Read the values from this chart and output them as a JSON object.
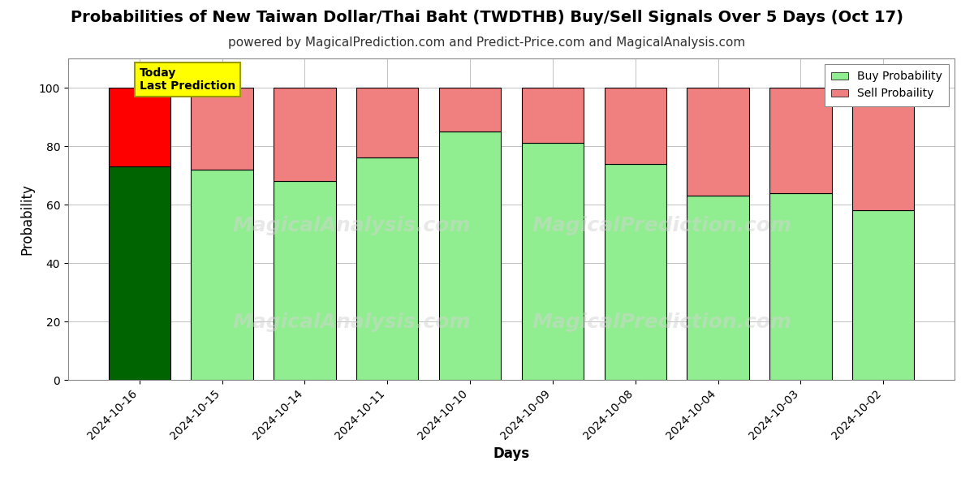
{
  "title": "Probabilities of New Taiwan Dollar/Thai Baht (TWDTHB) Buy/Sell Signals Over 5 Days (Oct 17)",
  "subtitle": "powered by MagicalPrediction.com and Predict-Price.com and MagicalAnalysis.com",
  "xlabel": "Days",
  "ylabel": "Probability",
  "categories": [
    "2024-10-16",
    "2024-10-15",
    "2024-10-14",
    "2024-10-11",
    "2024-10-10",
    "2024-10-09",
    "2024-10-08",
    "2024-10-04",
    "2024-10-03",
    "2024-10-02"
  ],
  "buy_values": [
    73,
    72,
    68,
    76,
    85,
    81,
    74,
    63,
    64,
    58
  ],
  "sell_values": [
    27,
    28,
    32,
    24,
    15,
    19,
    26,
    37,
    36,
    42
  ],
  "buy_color_first": "#006400",
  "sell_color_first": "#FF0000",
  "buy_color_rest": "#90EE90",
  "sell_color_rest": "#F08080",
  "bar_edge_color": "#000000",
  "ylim": [
    0,
    110
  ],
  "dashed_line_y": 110,
  "today_label_text": "Today\nLast Prediction",
  "today_label_bg": "#FFFF00",
  "legend_buy": "Buy Probability",
  "legend_sell": "Sell Probaility",
  "background_color": "#ffffff",
  "grid_color": "#aaaaaa",
  "watermark1_text": "MagicalAnalysis.com",
  "watermark2_text": "MagicalPrediction.com",
  "title_fontsize": 14,
  "subtitle_fontsize": 11
}
